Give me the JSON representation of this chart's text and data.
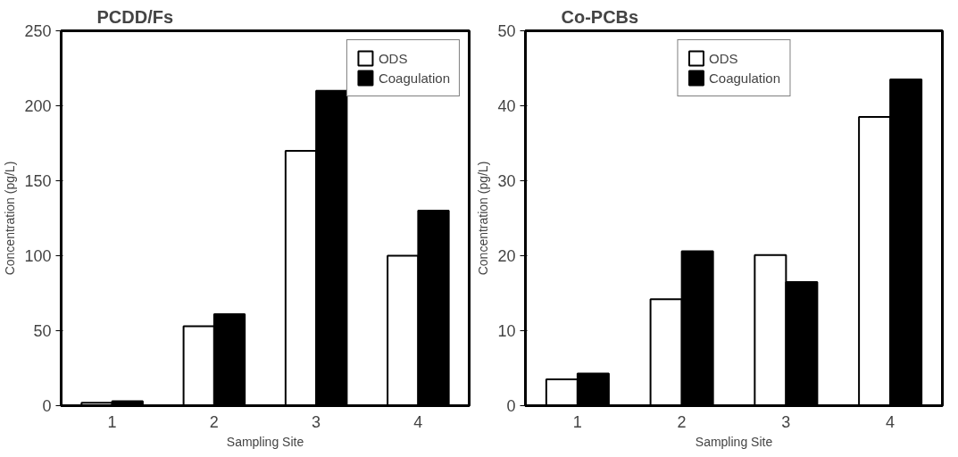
{
  "chart_data": [
    {
      "type": "bar",
      "title": "PCDD/Fs",
      "xlabel": "Sampling Site",
      "ylabel": "Concentration (pg/L)",
      "categories": [
        "1",
        "2",
        "3",
        "4"
      ],
      "ylim": [
        0,
        250
      ],
      "yticks": [
        0,
        50,
        100,
        150,
        200,
        250
      ],
      "legend": "top right",
      "series": [
        {
          "name": "ODS",
          "color": "#ffffff",
          "values": [
            2,
            53,
            170,
            100
          ]
        },
        {
          "name": "Coagulation",
          "color": "#000000",
          "values": [
            3,
            61,
            210,
            130
          ]
        }
      ]
    },
    {
      "type": "bar",
      "title": "Co-PCBs",
      "xlabel": "Sampling Site",
      "ylabel": "Concentration (pg/L)",
      "categories": [
        "1",
        "2",
        "3",
        "4"
      ],
      "ylim": [
        0,
        50
      ],
      "yticks": [
        0,
        10,
        20,
        30,
        40,
        50
      ],
      "legend": "top",
      "series": [
        {
          "name": "ODS",
          "color": "#ffffff",
          "values": [
            3.5,
            14.2,
            20.1,
            38.5
          ]
        },
        {
          "name": "Coagulation",
          "color": "#000000",
          "values": [
            4.3,
            20.6,
            16.5,
            43.5
          ]
        }
      ]
    }
  ]
}
